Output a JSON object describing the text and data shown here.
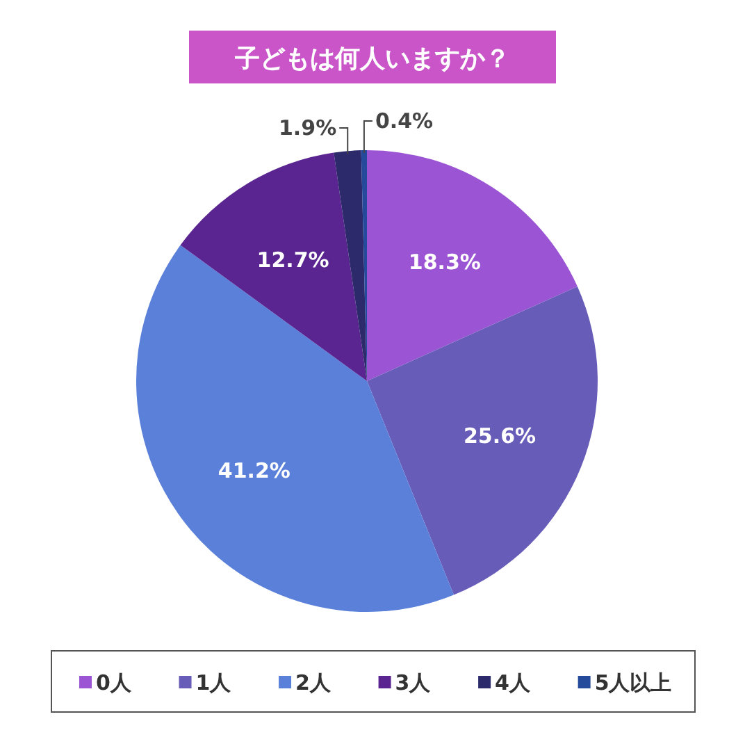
{
  "chart_data": {
    "type": "pie",
    "title": "子どもは何人いますか？",
    "categories": [
      "0人",
      "1人",
      "2人",
      "3人",
      "4人",
      "5人以上"
    ],
    "values": [
      18.3,
      25.6,
      41.2,
      12.7,
      1.9,
      0.4
    ],
    "colors": [
      "#9b55d4",
      "#685cb9",
      "#5a80da",
      "#5a2590",
      "#2c2a6a",
      "#254a9c"
    ],
    "value_labels": [
      "18.3%",
      "25.6%",
      "41.2%",
      "12.7%",
      "1.9%",
      "0.4%"
    ],
    "legend": "bottom"
  }
}
